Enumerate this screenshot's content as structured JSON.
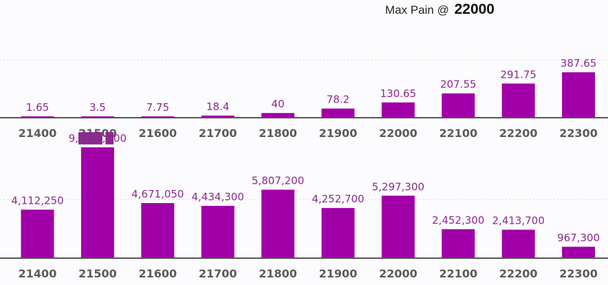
{
  "header": {
    "prefix": "Max Pain @",
    "value": "22000"
  },
  "colors": {
    "bar": "#a100a8",
    "baseline": "#555555",
    "grid": "#d8d8d8"
  },
  "chart_data": [
    {
      "type": "bar",
      "categories": [
        "21400",
        "21500",
        "21600",
        "21700",
        "21800",
        "21900",
        "22000",
        "22100",
        "22200",
        "22300"
      ],
      "values": [
        1.65,
        3.5,
        7.75,
        18.4,
        40,
        78.2,
        130.65,
        207.55,
        291.75,
        387.65
      ],
      "labels": [
        "1.65",
        "3.5",
        "7.75",
        "18.4",
        "40",
        "78.2",
        "130.65",
        "207.55",
        "291.75",
        "387.65"
      ],
      "ylim": [
        0,
        470
      ],
      "grid": true
    },
    {
      "type": "bar",
      "categories": [
        "21400",
        "21500",
        "21600",
        "21700",
        "21800",
        "21900",
        "22000",
        "22100",
        "22200",
        "22300"
      ],
      "values": [
        4112250,
        9400000,
        4671050,
        4434300,
        5807200,
        4252700,
        5297300,
        2452300,
        2413700,
        967300
      ],
      "labels": [
        "4,112,250",
        "9,███,█00",
        "4,671,050",
        "4,434,300",
        "5,807,200",
        "4,252,700",
        "5,297,300",
        "2,452,300",
        "2,413,700",
        "967,300"
      ],
      "ylim": [
        0,
        9400000
      ],
      "grid": true
    }
  ]
}
